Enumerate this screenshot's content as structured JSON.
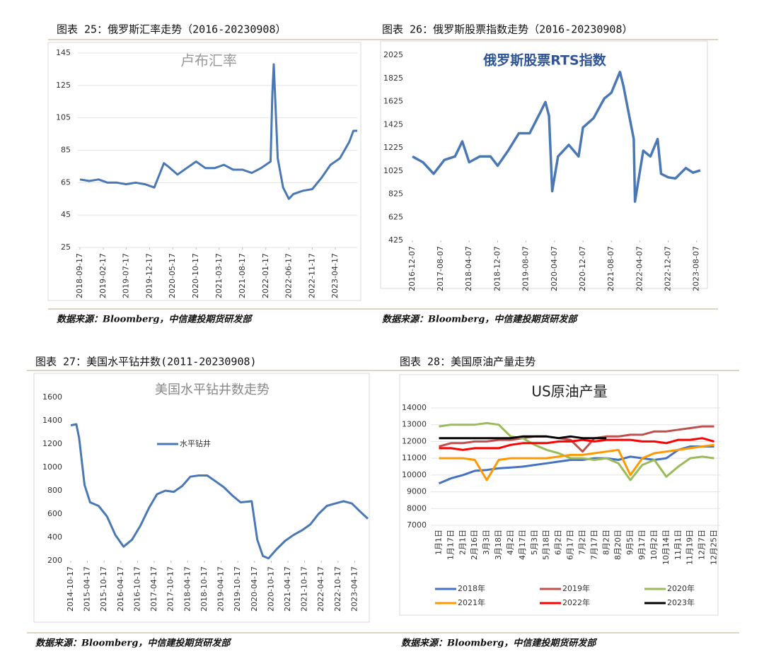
{
  "chart_data": [
    {
      "type": "line",
      "caption": "图表 25：俄罗斯汇率走势（2016-20230908）",
      "title": "卢布汇率",
      "source": "数据来源：Bloomberg，中信建投期货研发部",
      "grid": true,
      "x": [
        "2018-09-17",
        "2018-11-17",
        "2019-01-17",
        "2019-03-17",
        "2019-05-17",
        "2019-07-17",
        "2019-09-17",
        "2019-11-17",
        "2020-01-17",
        "2020-03-20",
        "2020-04-17",
        "2020-06-17",
        "2020-08-17",
        "2020-10-17",
        "2020-12-17",
        "2021-02-17",
        "2021-04-17",
        "2021-06-17",
        "2021-08-17",
        "2021-10-17",
        "2021-12-17",
        "2022-02-17",
        "2022-03-01",
        "2022-03-10",
        "2022-04-05",
        "2022-05-10",
        "2022-06-17",
        "2022-07-17",
        "2022-09-17",
        "2022-11-17",
        "2023-01-17",
        "2023-03-17",
        "2023-05-17",
        "2023-07-17",
        "2023-08-14",
        "2023-09-08"
      ],
      "values": [
        67,
        66,
        67,
        65,
        65,
        64,
        65,
        64,
        62,
        77,
        75,
        70,
        74,
        78,
        74,
        74,
        76,
        73,
        73,
        71,
        74,
        78,
        120,
        138,
        80,
        62,
        55,
        58,
        60,
        61,
        68,
        76,
        80,
        90,
        97,
        97
      ],
      "color": "#4a78b5",
      "xlim": [
        "2018-09-17",
        "2023-09-08"
      ],
      "xticks": [
        "2018-09-17",
        "2019-02-17",
        "2019-07-17",
        "2019-12-17",
        "2020-05-17",
        "2020-10-17",
        "2021-03-17",
        "2021-08-17",
        "2022-01-17",
        "2022-06-17",
        "2022-11-17",
        "2023-04-17"
      ],
      "ylim": [
        25,
        145
      ],
      "yticks": [
        25,
        45,
        65,
        85,
        105,
        125,
        145
      ]
    },
    {
      "type": "line",
      "caption": "图表 26：俄罗斯股票指数走势（2016-20230908）",
      "title": "俄罗斯股票RTS指数",
      "source": "数据来源：Bloomberg，中信建投期货研发部",
      "grid": false,
      "x": [
        "2016-12-07",
        "2017-03-07",
        "2017-06-07",
        "2017-09-07",
        "2017-12-07",
        "2018-02-07",
        "2018-04-07",
        "2018-07-07",
        "2018-10-07",
        "2018-12-07",
        "2019-03-07",
        "2019-06-07",
        "2019-09-07",
        "2019-12-07",
        "2020-01-20",
        "2020-02-20",
        "2020-03-18",
        "2020-05-07",
        "2020-08-07",
        "2020-10-30",
        "2020-12-07",
        "2021-03-07",
        "2021-06-07",
        "2021-08-07",
        "2021-10-20",
        "2021-11-20",
        "2022-01-07",
        "2022-02-15",
        "2022-02-25",
        "2022-05-07",
        "2022-07-07",
        "2022-09-07",
        "2022-10-07",
        "2022-12-07",
        "2023-02-07",
        "2023-05-07",
        "2023-07-07",
        "2023-09-08"
      ],
      "values": [
        1150,
        1100,
        1000,
        1120,
        1150,
        1280,
        1100,
        1150,
        1150,
        1070,
        1200,
        1350,
        1350,
        1530,
        1620,
        1500,
        850,
        1150,
        1250,
        1150,
        1400,
        1480,
        1650,
        1700,
        1880,
        1750,
        1500,
        1300,
        760,
        1200,
        1150,
        1300,
        1000,
        970,
        960,
        1050,
        1010,
        1030
      ],
      "color": "#4a78b5",
      "xlim": [
        "2016-12-07",
        "2023-09-08"
      ],
      "xticks": [
        "2016-12-07",
        "2017-08-07",
        "2018-04-07",
        "2018-12-07",
        "2019-08-07",
        "2020-04-07",
        "2020-12-07",
        "2021-08-07",
        "2022-04-07",
        "2022-12-07",
        "2023-08-07"
      ],
      "ylim": [
        425,
        2025
      ],
      "yticks": [
        425,
        625,
        825,
        1025,
        1225,
        1425,
        1625,
        1825,
        2025
      ]
    },
    {
      "type": "line",
      "caption": "图表 27：美国水平钻井数(2011-20230908)",
      "title": "美国水平钻井数走势",
      "source": "数据来源：Bloomberg，中信建投期货研发部",
      "grid": false,
      "series": [
        {
          "name": "水平钻井",
          "color": "#4a78b5",
          "x": [
            "2014-10-17",
            "2014-12-17",
            "2015-01-17",
            "2015-03-17",
            "2015-05-17",
            "2015-08-17",
            "2015-11-17",
            "2016-02-17",
            "2016-05-17",
            "2016-08-17",
            "2016-11-17",
            "2017-02-17",
            "2017-05-17",
            "2017-08-17",
            "2017-11-17",
            "2018-02-17",
            "2018-05-17",
            "2018-08-17",
            "2018-11-17",
            "2019-02-17",
            "2019-05-17",
            "2019-08-17",
            "2019-11-17",
            "2020-03-17",
            "2020-05-17",
            "2020-07-17",
            "2020-09-17",
            "2020-12-17",
            "2021-03-17",
            "2021-06-17",
            "2021-09-17",
            "2021-12-17",
            "2022-03-17",
            "2022-06-17",
            "2022-09-17",
            "2022-12-17",
            "2023-03-17",
            "2023-06-17",
            "2023-09-08"
          ],
          "values": [
            1360,
            1370,
            1250,
            850,
            700,
            670,
            580,
            420,
            320,
            380,
            500,
            650,
            770,
            800,
            790,
            840,
            920,
            930,
            930,
            880,
            830,
            760,
            700,
            710,
            380,
            240,
            220,
            300,
            370,
            420,
            460,
            510,
            600,
            670,
            690,
            710,
            690,
            620,
            560
          ]
        }
      ],
      "xlim": [
        "2014-10-17",
        "2023-09-08"
      ],
      "xticks": [
        "2014-10-17",
        "2015-04-17",
        "2015-10-17",
        "2016-04-17",
        "2016-10-17",
        "2017-04-17",
        "2017-10-17",
        "2018-04-17",
        "2018-10-17",
        "2019-04-17",
        "2019-10-17",
        "2020-04-17",
        "2020-10-17",
        "2021-04-17",
        "2021-10-17",
        "2022-04-17",
        "2022-10-17",
        "2023-04-17"
      ],
      "ylim": [
        200,
        1600
      ],
      "yticks": [
        200,
        400,
        600,
        800,
        1000,
        1200,
        1400,
        1600
      ]
    },
    {
      "type": "line",
      "caption": "图表 28：美国原油产量走势",
      "title": "US原油产量",
      "source": "数据来源：Bloomberg，中信建投期货研发部",
      "grid": true,
      "categories": [
        "1月1日",
        "1月17日",
        "2月1日",
        "2月16日",
        "3月3日",
        "3月18日",
        "4月2日",
        "4月17日",
        "5月3日",
        "5月18日",
        "6月2日",
        "6月17日",
        "7月2日",
        "7月17日",
        "8月2日",
        "8月20日",
        "9月5日",
        "9月17日",
        "10月2日",
        "10月14日",
        "11月1日",
        "11月19日",
        "12月7日",
        "12月25日"
      ],
      "series": [
        {
          "name": "2018年",
          "color": "#4472c4",
          "values": [
            9500,
            9800,
            10000,
            10250,
            10300,
            10400,
            10450,
            10500,
            10600,
            10700,
            10800,
            10900,
            10900,
            11000,
            11000,
            10900,
            11100,
            11000,
            10900,
            11000,
            11500,
            11700,
            11700,
            11700
          ]
        },
        {
          "name": "2019年",
          "color": "#c0504d",
          "values": [
            11700,
            11900,
            11900,
            12000,
            12000,
            12100,
            12100,
            12200,
            12300,
            12300,
            12200,
            12100,
            11400,
            12200,
            12300,
            12300,
            12400,
            12400,
            12600,
            12600,
            12700,
            12800,
            12900,
            12900
          ]
        },
        {
          "name": "2020年",
          "color": "#9bbb59",
          "values": [
            12900,
            13000,
            13000,
            13000,
            13100,
            13000,
            12300,
            12200,
            11800,
            11500,
            11300,
            11000,
            11000,
            10900,
            11000,
            10700,
            9700,
            10600,
            10900,
            9900,
            10500,
            11000,
            11100,
            11000
          ]
        },
        {
          "name": "2021年",
          "color": "#ff9900",
          "values": [
            11000,
            11000,
            11000,
            10900,
            9700,
            10900,
            11000,
            11000,
            11000,
            11000,
            11100,
            11200,
            11200,
            11300,
            11400,
            11500,
            10000,
            11000,
            11300,
            11400,
            11500,
            11600,
            11700,
            11800
          ]
        },
        {
          "name": "2022年",
          "color": "#ff0000",
          "values": [
            11600,
            11600,
            11500,
            11600,
            11600,
            11600,
            11800,
            11900,
            11900,
            11900,
            12000,
            12000,
            12100,
            12000,
            12100,
            12100,
            12100,
            12000,
            12000,
            11900,
            12100,
            12100,
            12200,
            12000
          ]
        },
        {
          "name": "2023年",
          "color": "#000000",
          "values": [
            12200,
            12200,
            12200,
            12200,
            12200,
            12200,
            12200,
            12300,
            12300,
            12300,
            12200,
            12300,
            12200,
            12200,
            12200,
            null,
            null,
            null,
            null,
            null,
            null,
            null,
            null,
            null
          ]
        }
      ],
      "ylim": [
        7000,
        14000
      ],
      "yticks": [
        7000,
        8000,
        9000,
        10000,
        11000,
        12000,
        13000,
        14000
      ]
    }
  ]
}
